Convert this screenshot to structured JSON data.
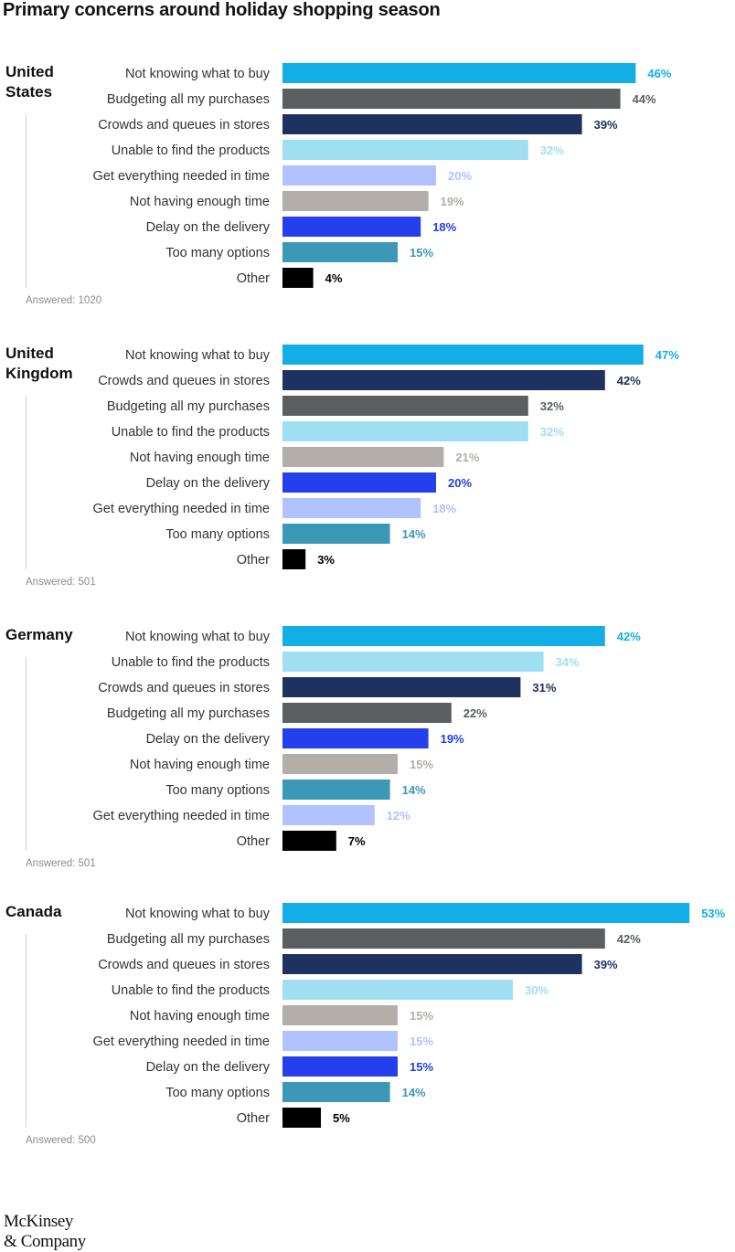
{
  "title": "Primary concerns around holiday shopping season",
  "brand": {
    "line1": "McKinsey",
    "line2": "& Company"
  },
  "colors": {
    "Not knowing what to buy": "#14aee6",
    "Budgeting all my purchases": "#5b5f60",
    "Crowds and queues in stores": "#1e3260",
    "Unable to find the products": "#a0dff2",
    "Get everything needed in time": "#b0c2ff",
    "Not having enough time": "#b3aeaa",
    "Delay on the delivery": "#2340ec",
    "Too many options": "#3b98b6",
    "Other": "#000000"
  },
  "chart_data": [
    {
      "type": "bar",
      "orientation": "horizontal",
      "country": "United States",
      "answered": "Answered: 1020",
      "categories": [
        "Not knowing what to buy",
        "Budgeting all my purchases",
        "Crowds and queues in stores",
        "Unable to find the products",
        "Get everything needed in time",
        "Not having enough time",
        "Delay on the delivery",
        "Too many options",
        "Other"
      ],
      "values": [
        46,
        44,
        39,
        32,
        20,
        19,
        18,
        15,
        4
      ],
      "value_labels": [
        "46%",
        "44%",
        "39%",
        "32%",
        "20%",
        "19%",
        "18%",
        "15%",
        "4%"
      ]
    },
    {
      "type": "bar",
      "orientation": "horizontal",
      "country": "United Kingdom",
      "answered": "Answered: 501",
      "categories": [
        "Not knowing what to buy",
        "Crowds and queues in stores",
        "Budgeting all my purchases",
        "Unable to find the products",
        "Not having enough time",
        "Delay on the delivery",
        "Get everything needed in time",
        "Too many options",
        "Other"
      ],
      "values": [
        47,
        42,
        32,
        32,
        21,
        20,
        18,
        14,
        3
      ],
      "value_labels": [
        "47%",
        "42%",
        "32%",
        "32%",
        "21%",
        "20%",
        "18%",
        "14%",
        "3%"
      ]
    },
    {
      "type": "bar",
      "orientation": "horizontal",
      "country": "Germany",
      "answered": "Answered: 501",
      "categories": [
        "Not knowing what to buy",
        "Unable to find the products",
        "Crowds and queues in stores",
        "Budgeting all my purchases",
        "Delay on the delivery",
        "Not having enough time",
        "Too many options",
        "Get everything needed in time",
        "Other"
      ],
      "values": [
        42,
        34,
        31,
        22,
        19,
        15,
        14,
        12,
        7
      ],
      "value_labels": [
        "42%",
        "34%",
        "31%",
        "22%",
        "19%",
        "15%",
        "14%",
        "12%",
        "7%"
      ]
    },
    {
      "type": "bar",
      "orientation": "horizontal",
      "country": "Canada",
      "answered": "Answered: 500",
      "categories": [
        "Not knowing what to buy",
        "Budgeting all my purchases",
        "Crowds and queues in stores",
        "Unable to find the products",
        "Not having enough time",
        "Get everything needed in time",
        "Delay on the delivery",
        "Too many options",
        "Other"
      ],
      "values": [
        53,
        42,
        39,
        30,
        15,
        15,
        15,
        14,
        5
      ],
      "value_labels": [
        "53%",
        "42%",
        "39%",
        "30%",
        "15%",
        "15%",
        "15%",
        "14%",
        "5%"
      ]
    }
  ]
}
